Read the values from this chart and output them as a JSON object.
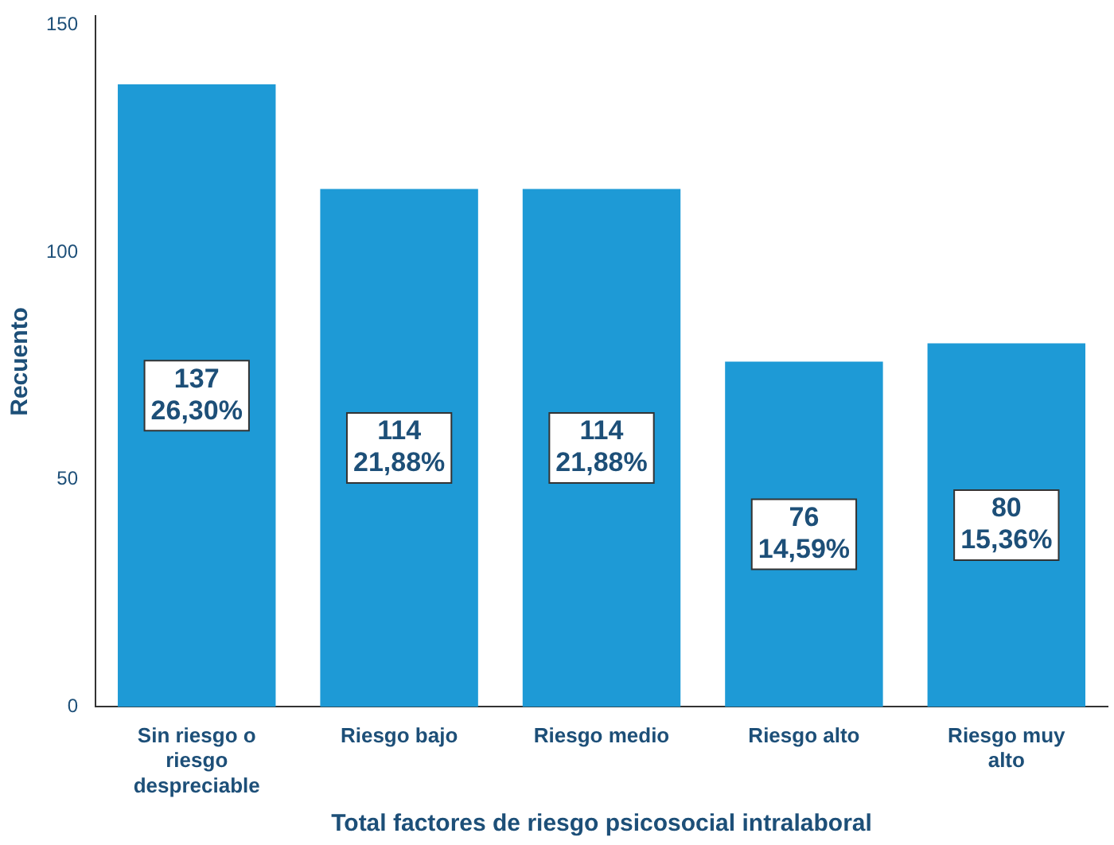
{
  "chart_data": {
    "type": "bar",
    "xlabel": "Total factores de riesgo psicosocial intralaboral",
    "ylabel": "Recuento",
    "categories": [
      "Sin riesgo o riesgo despreciable",
      "Riesgo bajo",
      "Riesgo medio",
      "Riesgo alto",
      "Riesgo muy alto"
    ],
    "values": [
      137,
      114,
      114,
      76,
      80
    ],
    "value_labels": [
      "137\n26,30%",
      "114\n21,88%",
      "114\n21,88%",
      "76\n14,59%",
      "80\n15,36%"
    ],
    "color": "#1e9ad6",
    "ylim": [
      0,
      152
    ],
    "yticks": [
      0,
      50,
      100,
      150
    ],
    "grid": false,
    "legend": false
  }
}
